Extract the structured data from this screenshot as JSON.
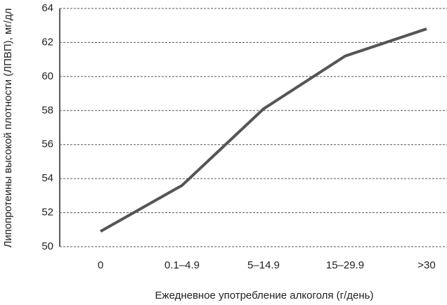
{
  "chart_data": {
    "type": "line",
    "y_label": "Липопротеины высокой плотности (ЛПВП), мг/дл",
    "x_label": "Ежедневное употребление алкоголя (г/день)",
    "categories": [
      "0",
      "0.1–4.9",
      "5–14.9",
      "15–29.9",
      ">30"
    ],
    "values": [
      50.9,
      53.6,
      58.1,
      61.2,
      62.8
    ],
    "color": "#555555",
    "ylim": [
      50,
      64
    ],
    "yticks": [
      50,
      52,
      54,
      56,
      58,
      60,
      62,
      64
    ],
    "grid": true
  }
}
